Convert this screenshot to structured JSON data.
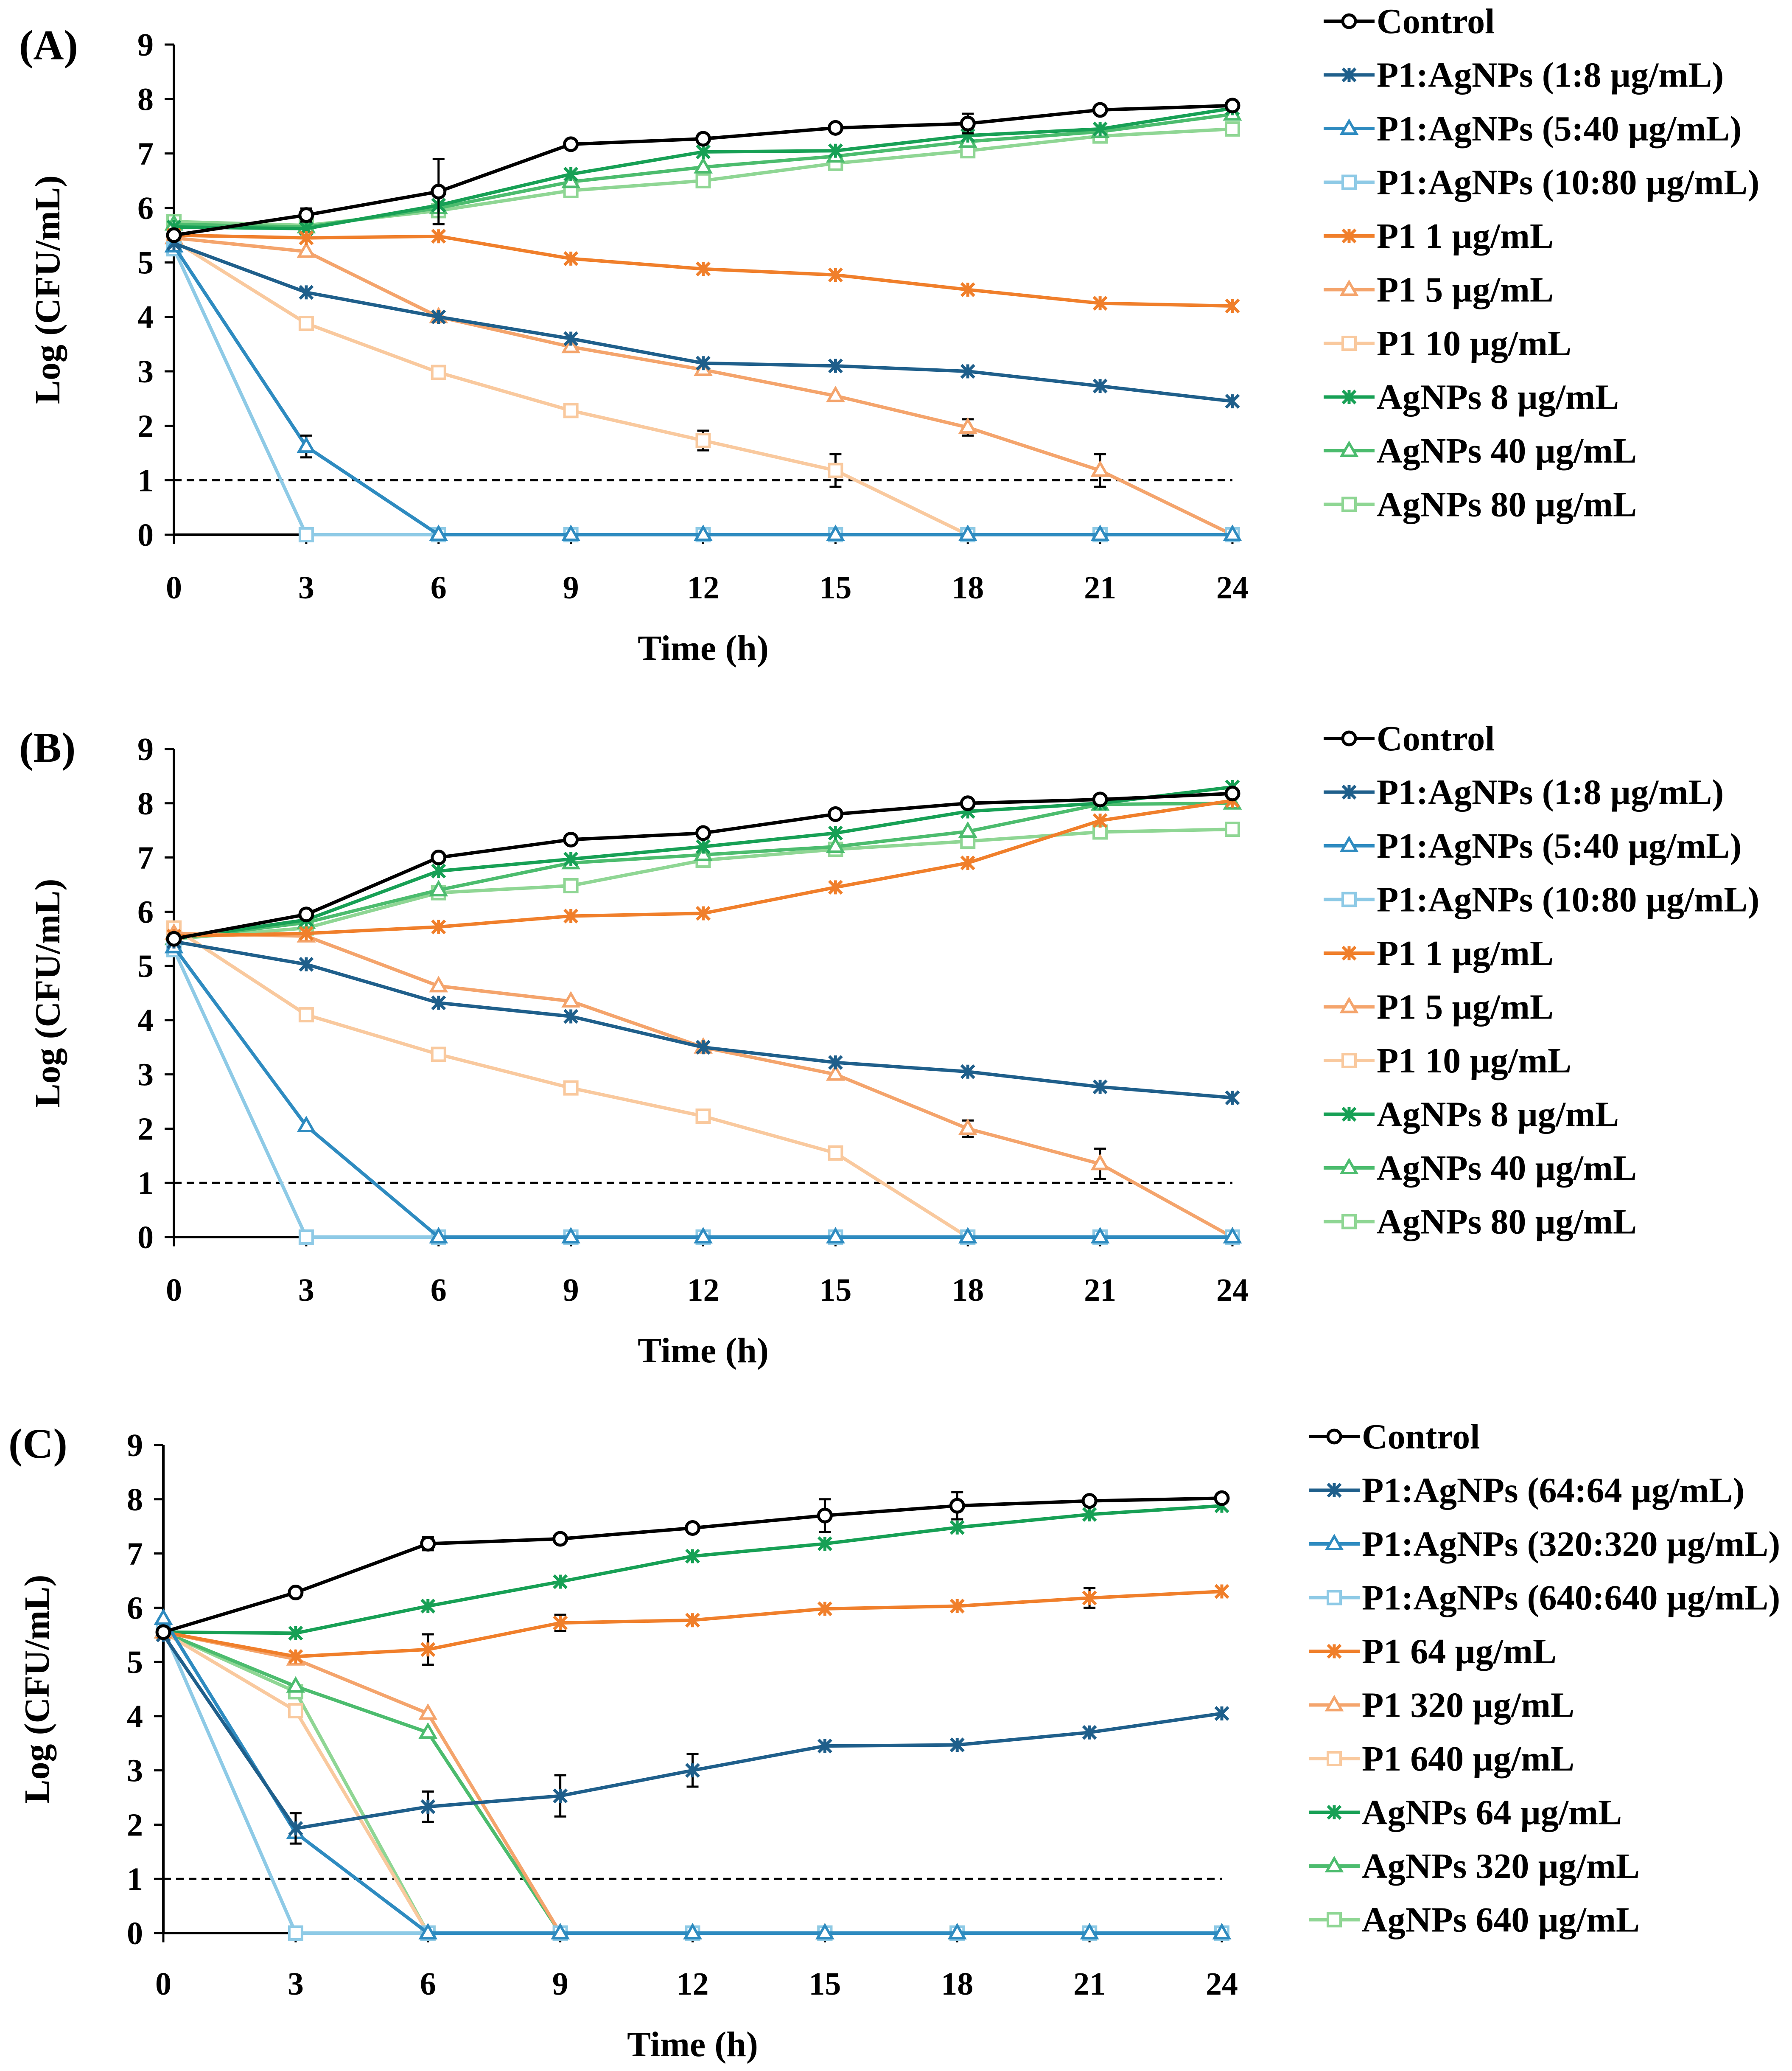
{
  "chart_data": [
    {
      "panel": "(A)",
      "type": "line",
      "xlabel": "Time (h)",
      "ylabel": "Log (CFU/mL)",
      "xlim": [
        0,
        24
      ],
      "ylim": [
        0,
        9
      ],
      "x_ticks": [
        "0",
        "3",
        "6",
        "9",
        "12",
        "15",
        "18",
        "21",
        "24"
      ],
      "y_ticks": [
        "0",
        "1",
        "2",
        "3",
        "4",
        "5",
        "6",
        "7",
        "8",
        "9"
      ],
      "threshold": 1,
      "x": [
        0,
        3,
        6,
        9,
        12,
        15,
        18,
        21,
        24
      ],
      "series": [
        {
          "name": "Control",
          "color": "#000000",
          "marker": "circle",
          "values": [
            5.5,
            5.87,
            6.3,
            7.17,
            7.27,
            7.47,
            7.55,
            7.8,
            7.88
          ],
          "errors": [
            0,
            0.12,
            0.6,
            0,
            0,
            0,
            0.18,
            0,
            0
          ]
        },
        {
          "name": "P1:AgNPs (1:8 µg/mL)",
          "color": "#1f5f8b",
          "marker": "star",
          "values": [
            5.35,
            4.45,
            4.0,
            3.6,
            3.15,
            3.1,
            3.0,
            2.73,
            2.45
          ],
          "errors": [
            0,
            0,
            0,
            0,
            0,
            0,
            0,
            0,
            0
          ]
        },
        {
          "name": "P1:AgNPs (5:40 µg/mL)",
          "color": "#2e8bc0",
          "marker": "triangle",
          "values": [
            5.3,
            1.62,
            0,
            0,
            0,
            0,
            0,
            0,
            0
          ],
          "errors": [
            0,
            0.2,
            0,
            0,
            0,
            0,
            0,
            0,
            0
          ]
        },
        {
          "name": "P1:AgNPs (10:80 µg/mL)",
          "color": "#8ecae6",
          "marker": "square",
          "values": [
            5.25,
            0,
            0,
            0,
            0,
            0,
            0,
            0,
            0
          ],
          "errors": [
            0,
            0,
            0,
            0,
            0,
            0,
            0,
            0,
            0
          ]
        },
        {
          "name": "P1 1 µg/mL",
          "color": "#f07f2b",
          "marker": "star",
          "values": [
            5.5,
            5.45,
            5.48,
            5.07,
            4.88,
            4.77,
            4.5,
            4.25,
            4.2
          ],
          "errors": [
            0,
            0,
            0,
            0,
            0,
            0,
            0,
            0,
            0
          ]
        },
        {
          "name": "P1 5 µg/mL",
          "color": "#f4a46c",
          "marker": "triangle",
          "values": [
            5.45,
            5.2,
            4.0,
            3.45,
            3.03,
            2.55,
            1.97,
            1.18,
            0
          ],
          "errors": [
            0,
            0,
            0,
            0,
            0,
            0,
            0.15,
            0.3,
            0
          ]
        },
        {
          "name": "P1 10 µg/mL",
          "color": "#f9c99e",
          "marker": "square",
          "values": [
            5.4,
            3.88,
            2.98,
            2.28,
            1.73,
            1.18,
            0,
            0,
            0
          ],
          "errors": [
            0,
            0,
            0,
            0,
            0.18,
            0.3,
            0,
            0,
            0
          ]
        },
        {
          "name": "AgNPs 8 µg/mL",
          "color": "#17a055",
          "marker": "star",
          "values": [
            5.65,
            5.62,
            6.05,
            6.62,
            7.03,
            7.05,
            7.33,
            7.45,
            7.83
          ],
          "errors": [
            0,
            0,
            0,
            0,
            0,
            0,
            0,
            0,
            0
          ]
        },
        {
          "name": "AgNPs 40 µg/mL",
          "color": "#4cbc6e",
          "marker": "triangle",
          "values": [
            5.7,
            5.65,
            6.0,
            6.48,
            6.75,
            6.95,
            7.22,
            7.4,
            7.72
          ],
          "errors": [
            0,
            0,
            0,
            0,
            0,
            0,
            0,
            0,
            0
          ]
        },
        {
          "name": "AgNPs 80 µg/mL",
          "color": "#8fd694",
          "marker": "square",
          "values": [
            5.75,
            5.68,
            5.95,
            6.32,
            6.5,
            6.82,
            7.05,
            7.32,
            7.45
          ],
          "errors": [
            0,
            0,
            0,
            0,
            0,
            0,
            0,
            0,
            0
          ]
        }
      ]
    },
    {
      "panel": "(B)",
      "type": "line",
      "xlabel": "Time (h)",
      "ylabel": "Log (CFU/mL)",
      "xlim": [
        0,
        24
      ],
      "ylim": [
        0,
        9
      ],
      "x_ticks": [
        "0",
        "3",
        "6",
        "9",
        "12",
        "15",
        "18",
        "21",
        "24"
      ],
      "y_ticks": [
        "0",
        "1",
        "2",
        "3",
        "4",
        "5",
        "6",
        "7",
        "8",
        "9"
      ],
      "threshold": 1,
      "x": [
        0,
        3,
        6,
        9,
        12,
        15,
        18,
        21,
        24
      ],
      "series": [
        {
          "name": "Control",
          "color": "#000000",
          "marker": "circle",
          "values": [
            5.5,
            5.95,
            7.0,
            7.33,
            7.45,
            7.8,
            8.0,
            8.07,
            8.18
          ],
          "errors": [
            0,
            0,
            0,
            0,
            0,
            0,
            0,
            0,
            0
          ]
        },
        {
          "name": "P1:AgNPs (1:8 µg/mL)",
          "color": "#1f5f8b",
          "marker": "star",
          "values": [
            5.45,
            5.03,
            4.32,
            4.07,
            3.5,
            3.22,
            3.05,
            2.77,
            2.57
          ],
          "errors": [
            0,
            0,
            0,
            0,
            0,
            0,
            0,
            0,
            0
          ]
        },
        {
          "name": "P1:AgNPs (5:40 µg/mL)",
          "color": "#2e8bc0",
          "marker": "triangle",
          "values": [
            5.35,
            2.05,
            0,
            0,
            0,
            0,
            0,
            0,
            0
          ],
          "errors": [
            0,
            0,
            0,
            0,
            0,
            0,
            0,
            0,
            0
          ]
        },
        {
          "name": "P1:AgNPs (10:80 µg/mL)",
          "color": "#8ecae6",
          "marker": "square",
          "values": [
            5.3,
            0,
            0,
            0,
            0,
            0,
            0,
            0,
            0
          ],
          "errors": [
            0,
            0,
            0,
            0,
            0,
            0,
            0,
            0,
            0
          ]
        },
        {
          "name": "P1 1 µg/mL",
          "color": "#f07f2b",
          "marker": "star",
          "values": [
            5.55,
            5.6,
            5.72,
            5.92,
            5.97,
            6.45,
            6.9,
            7.68,
            8.05
          ],
          "errors": [
            0,
            0,
            0,
            0,
            0,
            0,
            0,
            0,
            0
          ]
        },
        {
          "name": "P1 5 µg/mL",
          "color": "#f4a46c",
          "marker": "triangle",
          "values": [
            5.6,
            5.55,
            4.63,
            4.35,
            3.5,
            3.0,
            2.0,
            1.35,
            0
          ],
          "errors": [
            0,
            0,
            0,
            0,
            0,
            0,
            0.15,
            0.28,
            0
          ]
        },
        {
          "name": "P1 10 µg/mL",
          "color": "#f9c99e",
          "marker": "square",
          "values": [
            5.7,
            4.1,
            3.37,
            2.75,
            2.23,
            1.55,
            0,
            0,
            0
          ],
          "errors": [
            0,
            0,
            0,
            0,
            0,
            0,
            0,
            0,
            0
          ]
        },
        {
          "name": "AgNPs 8 µg/mL",
          "color": "#17a055",
          "marker": "star",
          "values": [
            5.5,
            5.85,
            6.75,
            6.97,
            7.2,
            7.45,
            7.85,
            8.0,
            8.3
          ],
          "errors": [
            0,
            0,
            0,
            0,
            0,
            0,
            0,
            0,
            0
          ]
        },
        {
          "name": "AgNPs 40 µg/mL",
          "color": "#4cbc6e",
          "marker": "triangle",
          "values": [
            5.5,
            5.8,
            6.4,
            6.9,
            7.05,
            7.2,
            7.48,
            7.98,
            8.0
          ],
          "errors": [
            0,
            0,
            0,
            0,
            0,
            0,
            0,
            0,
            0
          ]
        },
        {
          "name": "AgNPs 80 µg/mL",
          "color": "#8fd694",
          "marker": "square",
          "values": [
            5.5,
            5.7,
            6.35,
            6.48,
            6.95,
            7.15,
            7.3,
            7.47,
            7.52
          ],
          "errors": [
            0,
            0,
            0,
            0,
            0,
            0,
            0,
            0,
            0
          ]
        }
      ]
    },
    {
      "panel": "(C)",
      "type": "line",
      "xlabel": "Time (h)",
      "ylabel": "Log (CFU/mL)",
      "xlim": [
        0,
        24
      ],
      "ylim": [
        0,
        9
      ],
      "x_ticks": [
        "0",
        "3",
        "6",
        "9",
        "12",
        "15",
        "18",
        "21",
        "24"
      ],
      "y_ticks": [
        "0",
        "1",
        "2",
        "3",
        "4",
        "5",
        "6",
        "7",
        "8",
        "9"
      ],
      "threshold": 1,
      "x": [
        0,
        3,
        6,
        9,
        12,
        15,
        18,
        21,
        24
      ],
      "series": [
        {
          "name": "Control",
          "color": "#000000",
          "marker": "circle",
          "values": [
            5.55,
            6.28,
            7.18,
            7.27,
            7.47,
            7.7,
            7.88,
            7.97,
            8.02
          ],
          "errors": [
            0,
            0,
            0.12,
            0,
            0,
            0.3,
            0.25,
            0,
            0
          ]
        },
        {
          "name": "P1:AgNPs (64:64 µg/mL)",
          "color": "#1f5f8b",
          "marker": "star",
          "values": [
            5.5,
            1.93,
            2.33,
            2.53,
            3.0,
            3.45,
            3.47,
            3.7,
            4.05
          ],
          "errors": [
            0,
            0.28,
            0.28,
            0.38,
            0.3,
            0,
            0,
            0,
            0
          ]
        },
        {
          "name": "P1:AgNPs (320:320 µg/mL)",
          "color": "#2e8bc0",
          "marker": "triangle",
          "values": [
            5.8,
            1.85,
            0,
            0,
            0,
            0,
            0,
            0,
            0
          ],
          "errors": [
            0,
            0,
            0,
            0,
            0,
            0,
            0,
            0,
            0
          ]
        },
        {
          "name": "P1:AgNPs (640:640 µg/mL)",
          "color": "#8ecae6",
          "marker": "square",
          "values": [
            5.6,
            0,
            0,
            0,
            0,
            0,
            0,
            0,
            0
          ],
          "errors": [
            0,
            0,
            0,
            0,
            0,
            0,
            0,
            0,
            0
          ]
        },
        {
          "name": "P1 64 µg/mL",
          "color": "#f07f2b",
          "marker": "star",
          "values": [
            5.55,
            5.1,
            5.23,
            5.72,
            5.77,
            5.98,
            6.03,
            6.18,
            6.3
          ],
          "errors": [
            0,
            0,
            0.28,
            0.15,
            0,
            0,
            0,
            0.18,
            0
          ]
        },
        {
          "name": "P1 320 µg/mL",
          "color": "#f4a46c",
          "marker": "triangle",
          "values": [
            5.55,
            5.05,
            4.05,
            0,
            0,
            0,
            0,
            0,
            0
          ],
          "errors": [
            0,
            0,
            0,
            0,
            0,
            0,
            0,
            0,
            0
          ]
        },
        {
          "name": "P1 640 µg/mL",
          "color": "#f9c99e",
          "marker": "square",
          "values": [
            5.55,
            4.1,
            0,
            0,
            0,
            0,
            0,
            0,
            0
          ],
          "errors": [
            0,
            0,
            0,
            0,
            0,
            0,
            0,
            0,
            0
          ]
        },
        {
          "name": "AgNPs 64 µg/mL",
          "color": "#17a055",
          "marker": "star",
          "values": [
            5.55,
            5.53,
            6.03,
            6.48,
            6.95,
            7.18,
            7.48,
            7.72,
            7.88
          ],
          "errors": [
            0,
            0,
            0,
            0,
            0,
            0,
            0,
            0,
            0
          ]
        },
        {
          "name": "AgNPs 320 µg/mL",
          "color": "#4cbc6e",
          "marker": "triangle",
          "values": [
            5.55,
            4.55,
            3.7,
            0,
            0,
            0,
            0,
            0,
            0
          ],
          "errors": [
            0,
            0,
            0,
            0,
            0,
            0,
            0,
            0,
            0
          ]
        },
        {
          "name": "AgNPs 640 µg/mL",
          "color": "#8fd694",
          "marker": "square",
          "values": [
            5.55,
            4.45,
            0,
            0,
            0,
            0,
            0,
            0,
            0
          ],
          "errors": [
            0,
            0,
            0,
            0,
            0,
            0,
            0,
            0,
            0
          ]
        }
      ]
    }
  ]
}
